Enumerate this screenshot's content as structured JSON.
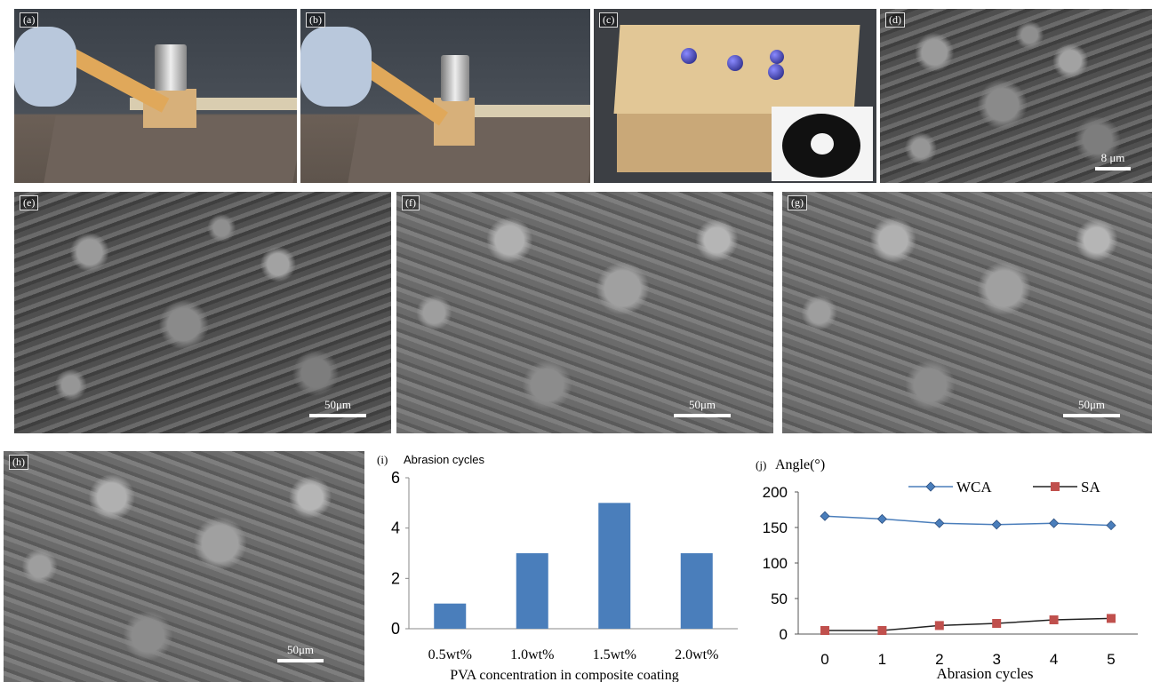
{
  "panels": {
    "a": {
      "label": "(a)"
    },
    "b": {
      "label": "(b)"
    },
    "c": {
      "label": "(c)"
    },
    "d": {
      "label": "(d)",
      "scale": "8 μm"
    },
    "e": {
      "label": "(e)",
      "scale": "50μm"
    },
    "f": {
      "label": "(f)",
      "scale": "50μm"
    },
    "g": {
      "label": "(g)",
      "scale": "50μm"
    },
    "h": {
      "label": "(h)",
      "scale": "50μm"
    }
  },
  "colors": {
    "bar": "#4a7ebb",
    "wca": "#4a7ebb",
    "sa": "#c0504d"
  },
  "chart_data": [
    {
      "type": "bar",
      "panel_label": "(i)",
      "title": "Abrasion cycles",
      "xlabel": "PVA concentration in composite coating",
      "ylabel": "",
      "categories": [
        "0.5wt%",
        "1.0wt%",
        "1.5wt%",
        "2.0wt%"
      ],
      "values": [
        1,
        3,
        5,
        3
      ],
      "ylim": [
        0,
        6
      ],
      "yticks": [
        "0",
        "2",
        "4",
        "6"
      ],
      "grid": false
    },
    {
      "type": "line",
      "panel_label": "(j)",
      "title": "Angle(°)",
      "xlabel": "Abrasion cycles",
      "ylabel": "",
      "x": [
        0,
        1,
        2,
        3,
        4,
        5
      ],
      "xticks": [
        "0",
        "1",
        "2",
        "3",
        "4",
        "5"
      ],
      "ylim": [
        0,
        200
      ],
      "yticks": [
        "0",
        "50",
        "100",
        "150",
        "200"
      ],
      "legend_position": "top",
      "series": [
        {
          "name": "WCA",
          "values": [
            166,
            162,
            156,
            154,
            156,
            153
          ]
        },
        {
          "name": "SA",
          "values": [
            5,
            5,
            12,
            15,
            20,
            22
          ]
        }
      ],
      "grid": false
    }
  ]
}
